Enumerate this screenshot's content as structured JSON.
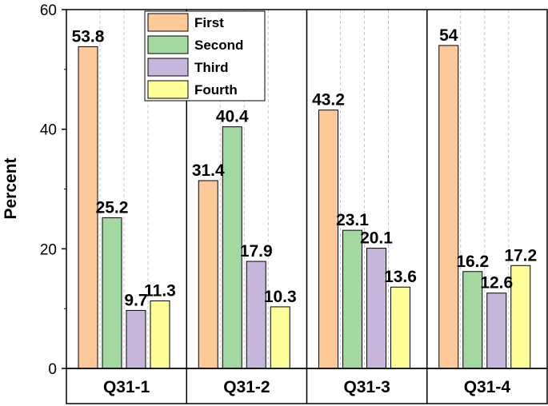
{
  "chart_data": {
    "type": "bar",
    "ylabel": "Percent",
    "xlabel": "",
    "ylim": [
      0,
      60
    ],
    "yticks": [
      0,
      20,
      40,
      60
    ],
    "categories": [
      "Q31-1",
      "Q31-2",
      "Q31-3",
      "Q31-4"
    ],
    "series": [
      {
        "name": "First",
        "color": "#FDC998",
        "values": [
          53.8,
          31.4,
          43.2,
          54
        ]
      },
      {
        "name": "Second",
        "color": "#A3D9A1",
        "values": [
          25.2,
          40.4,
          23.1,
          16.2
        ]
      },
      {
        "name": "Third",
        "color": "#C7B6DB",
        "values": [
          9.7,
          17.9,
          20.1,
          12.6
        ]
      },
      {
        "name": "Fourth",
        "color": "#FFFF99",
        "values": [
          11.3,
          10.3,
          13.6,
          17.2
        ]
      }
    ],
    "grid": "vertical dashed lines between bars",
    "legend_position": "top-left"
  }
}
